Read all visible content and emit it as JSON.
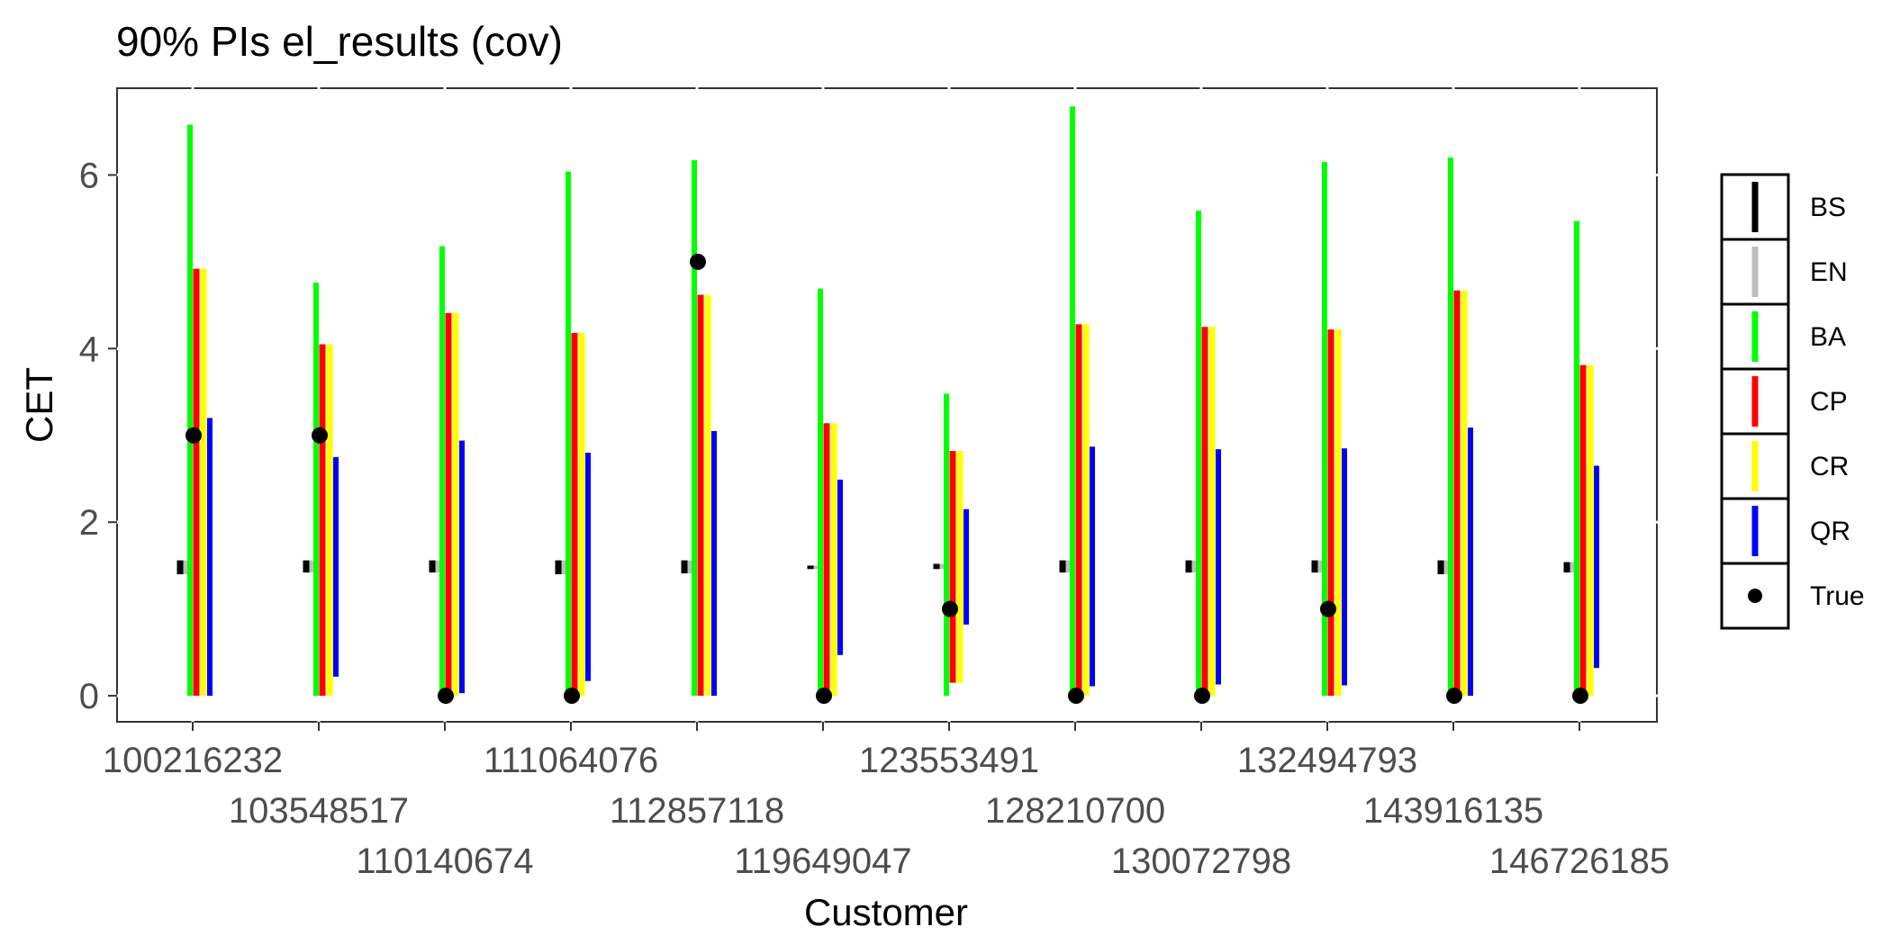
{
  "chart_data": {
    "type": "interval",
    "title": "90% PIs el_results (cov)",
    "xlabel": "Customer",
    "ylabel": "CET",
    "ylim": [
      -0.3,
      7.0
    ],
    "yticks": [
      0,
      2,
      4,
      6
    ],
    "grid": false,
    "legend_position": "right",
    "categories": [
      "100216232",
      "103548517",
      "110140674",
      "111064076",
      "112857118",
      "119649047",
      "123553491",
      "128210700",
      "130072798",
      "132494793",
      "143916135",
      "146726185"
    ],
    "series": [
      {
        "name": "BS",
        "color": "#000000",
        "intervals": [
          [
            1.4,
            1.56
          ],
          [
            1.42,
            1.56
          ],
          [
            1.42,
            1.56
          ],
          [
            1.4,
            1.56
          ],
          [
            1.41,
            1.56
          ],
          [
            1.46,
            1.5
          ],
          [
            1.46,
            1.52
          ],
          [
            1.42,
            1.56
          ],
          [
            1.42,
            1.56
          ],
          [
            1.42,
            1.56
          ],
          [
            1.4,
            1.56
          ],
          [
            1.42,
            1.54
          ]
        ]
      },
      {
        "name": "EN",
        "color": "#bebebe",
        "intervals": [
          [
            1.4,
            1.56
          ],
          [
            1.42,
            1.56
          ],
          [
            1.42,
            1.56
          ],
          [
            1.4,
            1.56
          ],
          [
            1.41,
            1.56
          ],
          [
            1.46,
            1.5
          ],
          [
            1.46,
            1.52
          ],
          [
            1.42,
            1.56
          ],
          [
            1.42,
            1.56
          ],
          [
            1.42,
            1.56
          ],
          [
            1.4,
            1.56
          ],
          [
            1.42,
            1.54
          ]
        ]
      },
      {
        "name": "BA",
        "color": "#00ff00",
        "intervals": [
          [
            0,
            6.58
          ],
          [
            0,
            4.76
          ],
          [
            0,
            5.18
          ],
          [
            0,
            6.04
          ],
          [
            0,
            6.17
          ],
          [
            0,
            4.69
          ],
          [
            0,
            3.48
          ],
          [
            0,
            6.79
          ],
          [
            0,
            5.59
          ],
          [
            0,
            6.15
          ],
          [
            0,
            6.2
          ],
          [
            0,
            5.47
          ]
        ]
      },
      {
        "name": "CP",
        "color": "#ff0000",
        "intervals": [
          [
            0,
            4.92
          ],
          [
            0,
            4.05
          ],
          [
            0,
            4.41
          ],
          [
            0,
            4.18
          ],
          [
            0,
            4.62
          ],
          [
            0,
            3.14
          ],
          [
            0.15,
            2.82
          ],
          [
            0,
            4.28
          ],
          [
            0,
            4.25
          ],
          [
            0,
            4.22
          ],
          [
            0,
            4.67
          ],
          [
            0,
            3.81
          ]
        ]
      },
      {
        "name": "CR",
        "color": "#ffff00",
        "intervals": [
          [
            0,
            4.92
          ],
          [
            0,
            4.05
          ],
          [
            0,
            4.41
          ],
          [
            0,
            4.18
          ],
          [
            0,
            4.62
          ],
          [
            0,
            3.14
          ],
          [
            0.15,
            2.82
          ],
          [
            0,
            4.28
          ],
          [
            0,
            4.25
          ],
          [
            0,
            4.22
          ],
          [
            0,
            4.67
          ],
          [
            0,
            3.81
          ]
        ]
      },
      {
        "name": "QR",
        "color": "#0000ff",
        "intervals": [
          [
            0,
            3.2
          ],
          [
            0.22,
            2.75
          ],
          [
            0.03,
            2.94
          ],
          [
            0.17,
            2.8
          ],
          [
            0,
            3.05
          ],
          [
            0.47,
            2.49
          ],
          [
            0.82,
            2.15
          ],
          [
            0.11,
            2.87
          ],
          [
            0.13,
            2.84
          ],
          [
            0.12,
            2.85
          ],
          [
            0,
            3.09
          ],
          [
            0.32,
            2.65
          ]
        ]
      }
    ],
    "true_values": [
      3,
      3,
      0,
      0,
      5,
      0,
      1,
      0,
      0,
      1,
      0,
      0
    ],
    "true_label": "True",
    "true_color": "#000000"
  }
}
